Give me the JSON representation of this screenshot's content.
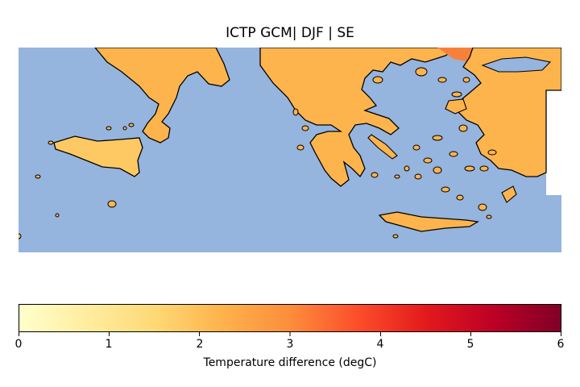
{
  "title": "ICTP GCM| DJF | SE",
  "colorbar": {
    "label": "Temperature difference (degC)",
    "ticks": [
      "0",
      "1",
      "2",
      "3",
      "4",
      "5",
      "6"
    ],
    "range": [
      0,
      6
    ],
    "colormap": "YlOrRd",
    "colors": [
      "#ffffcc",
      "#ffeda0",
      "#fed976",
      "#feb24c",
      "#fd8d3c",
      "#fc4e2a",
      "#e31a1c",
      "#bd0026",
      "#800026"
    ]
  },
  "map": {
    "ocean_color": "#95b4de",
    "land_color_typical": "#fdb44d",
    "land_color_light": "#fec963",
    "land_color_hot": "#f7813a",
    "missing_color": "#ffffff",
    "coastline_color": "#000000"
  }
}
